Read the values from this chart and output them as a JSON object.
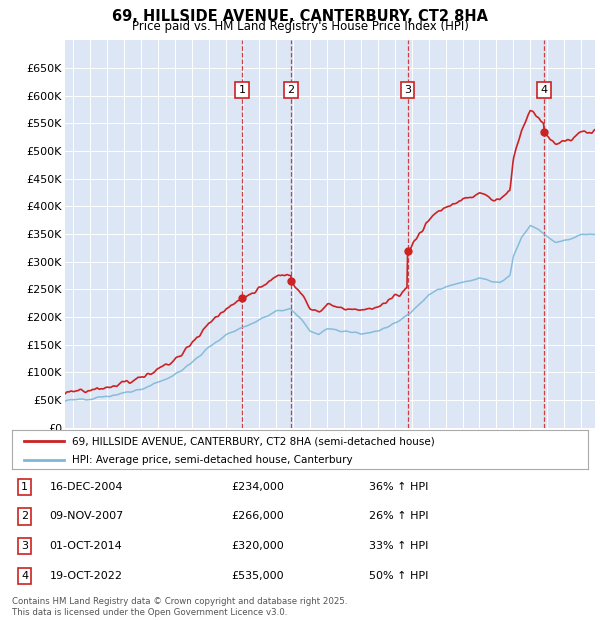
{
  "title": "69, HILLSIDE AVENUE, CANTERBURY, CT2 8HA",
  "subtitle": "Price paid vs. HM Land Registry's House Price Index (HPI)",
  "plot_bg_color": "#dce6f5",
  "hpi_color": "#7db8d8",
  "price_color": "#cc2222",
  "dashed_color": "#cc2222",
  "yticks": [
    0,
    50000,
    100000,
    150000,
    200000,
    250000,
    300000,
    350000,
    400000,
    450000,
    500000,
    550000,
    600000,
    650000
  ],
  "ytick_labels": [
    "£0",
    "£50K",
    "£100K",
    "£150K",
    "£200K",
    "£250K",
    "£300K",
    "£350K",
    "£400K",
    "£450K",
    "£500K",
    "£550K",
    "£600K",
    "£650K"
  ],
  "sales": [
    {
      "date": "16-DEC-2004",
      "x": 2004.96,
      "price": 234000,
      "label": "1"
    },
    {
      "date": "09-NOV-2007",
      "x": 2007.86,
      "price": 266000,
      "label": "2"
    },
    {
      "date": "01-OCT-2014",
      "x": 2014.75,
      "price": 320000,
      "label": "3"
    },
    {
      "date": "19-OCT-2022",
      "x": 2022.8,
      "price": 535000,
      "label": "4"
    }
  ],
  "legend_line1": "69, HILLSIDE AVENUE, CANTERBURY, CT2 8HA (semi-detached house)",
  "legend_line2": "HPI: Average price, semi-detached house, Canterbury",
  "table_rows": [
    [
      "1",
      "16-DEC-2004",
      "£234,000",
      "36% ↑ HPI"
    ],
    [
      "2",
      "09-NOV-2007",
      "£266,000",
      "26% ↑ HPI"
    ],
    [
      "3",
      "01-OCT-2014",
      "£320,000",
      "33% ↑ HPI"
    ],
    [
      "4",
      "19-OCT-2022",
      "£535,000",
      "50% ↑ HPI"
    ]
  ],
  "footer": "Contains HM Land Registry data © Crown copyright and database right 2025.\nThis data is licensed under the Open Government Licence v3.0.",
  "xlim": [
    1994.5,
    2025.8
  ],
  "ylim": [
    0,
    700000
  ]
}
